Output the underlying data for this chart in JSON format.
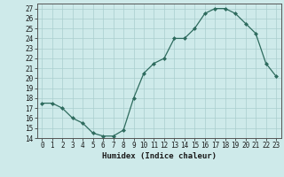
{
  "x": [
    0,
    1,
    2,
    3,
    4,
    5,
    6,
    7,
    8,
    9,
    10,
    11,
    12,
    13,
    14,
    15,
    16,
    17,
    18,
    19,
    20,
    21,
    22,
    23
  ],
  "y": [
    17.5,
    17.5,
    17.0,
    16.0,
    15.5,
    14.5,
    14.2,
    14.2,
    14.8,
    18.0,
    20.5,
    21.5,
    22.0,
    24.0,
    24.0,
    25.0,
    26.5,
    27.0,
    27.0,
    26.5,
    25.5,
    24.5,
    21.5,
    20.2
  ],
  "line_color": "#2e6b5e",
  "marker": "D",
  "marker_size": 2.0,
  "bg_color": "#ceeaea",
  "grid_color": "#aacece",
  "xlabel": "Humidex (Indice chaleur)",
  "ylim": [
    14,
    27.5
  ],
  "xlim": [
    -0.5,
    23.5
  ],
  "yticks": [
    14,
    15,
    16,
    17,
    18,
    19,
    20,
    21,
    22,
    23,
    24,
    25,
    26,
    27
  ],
  "xticks": [
    0,
    1,
    2,
    3,
    4,
    5,
    6,
    7,
    8,
    9,
    10,
    11,
    12,
    13,
    14,
    15,
    16,
    17,
    18,
    19,
    20,
    21,
    22,
    23
  ],
  "label_fontsize": 6.5,
  "tick_fontsize": 5.5
}
